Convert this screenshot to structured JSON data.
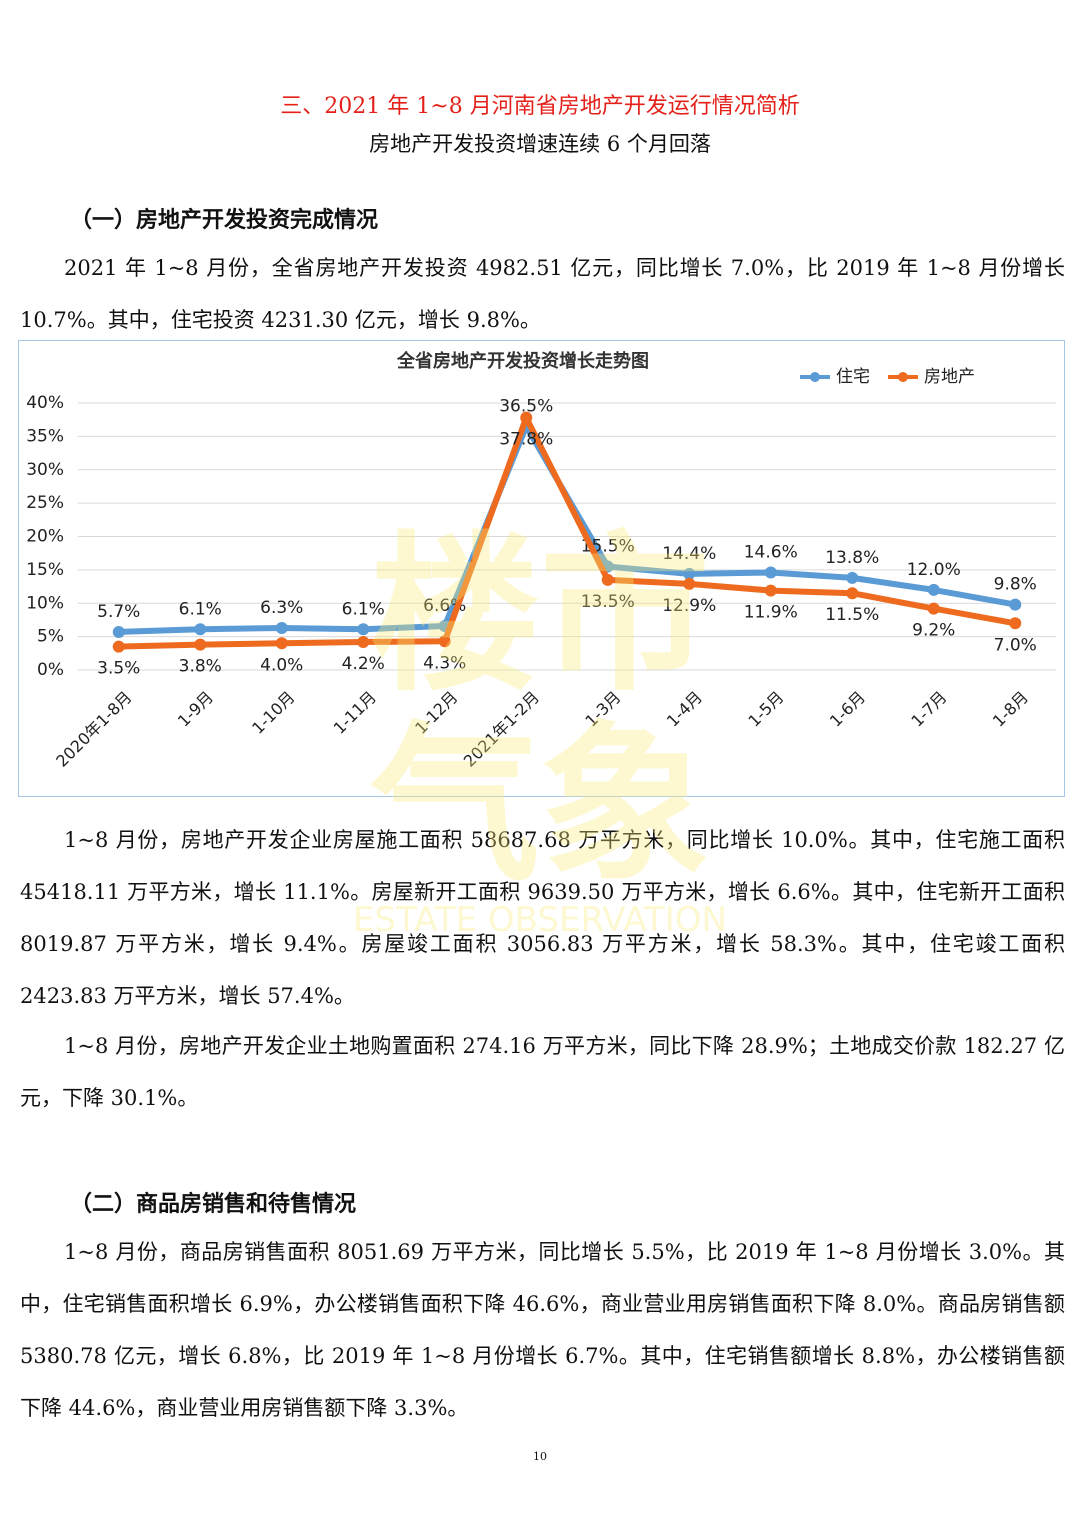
{
  "header": {
    "title": "三、2021 年 1~8 月河南省房地产开发运行情况简析",
    "subtitle": "房地产开发投资增速连续 6 个月回落"
  },
  "sections": [
    {
      "heading": "（一）房地产开发投资完成情况",
      "paragraphs": [
        "2021 年 1~8 月份，全省房地产开发投资 4982.51 亿元，同比增长 7.0%，比 2019 年 1~8 月份增长 10.7%。其中，住宅投资 4231.30 亿元，增长 9.8%。",
        "1~8 月份，房地产开发企业房屋施工面积 58687.68 万平方米，同比增长 10.0%。其中，住宅施工面积 45418.11 万平方米，增长 11.1%。房屋新开工面积 9639.50 万平方米，增长 6.6%。其中，住宅新开工面积 8019.87 万平方米，增长 9.4%。房屋竣工面积 3056.83 万平方米，增长 58.3%。其中，住宅竣工面积 2423.83 万平方米，增长 57.4%。",
        "1~8 月份，房地产开发企业土地购置面积 274.16 万平方米，同比下降 28.9%；土地成交价款 182.27 亿元，下降 30.1%。"
      ]
    },
    {
      "heading": "（二）商品房销售和待售情况",
      "paragraphs": [
        "1~8 月份，商品房销售面积 8051.69 万平方米，同比增长 5.5%，比 2019 年 1~8 月份增长 3.0%。其中，住宅销售面积增长 6.9%，办公楼销售面积下降 46.6%，商业营业用房销售面积下降 8.0%。商品房销售额 5380.78 亿元，增长 6.8%，比 2019 年 1~8 月份增长 6.7%。其中，住宅销售额增长 8.8%，办公楼销售额下降 44.6%，商业营业用房销售额下降 3.3%。"
      ]
    }
  ],
  "watermark": {
    "main": "楼市气象",
    "english": "ESTATE OBSERVATION"
  },
  "page_number": "10",
  "chart_data": {
    "type": "line",
    "title": "全省房地产开发投资增长走势图",
    "categories": [
      "2020年1-8月",
      "1-9月",
      "1-10月",
      "1-11月",
      "1-12月",
      "2021年1-2月",
      "1-3月",
      "1-4月",
      "1-5月",
      "1-6月",
      "1-7月",
      "1-8月"
    ],
    "series": [
      {
        "name": "住宅",
        "color": "#5b9bd5",
        "values": [
          5.7,
          6.1,
          6.3,
          6.1,
          6.6,
          36.5,
          15.5,
          14.4,
          14.6,
          13.8,
          12.0,
          9.8
        ],
        "value_labels": [
          "5.7%",
          "6.1%",
          "6.3%",
          "6.1%",
          "6.6%",
          "36.5%",
          "15.5%",
          "14.4%",
          "14.6%",
          "13.8%",
          "12.0%",
          "9.8%"
        ]
      },
      {
        "name": "房地产",
        "color": "#ed6a1e",
        "values": [
          3.5,
          3.8,
          4.0,
          4.2,
          4.3,
          37.8,
          13.5,
          12.9,
          11.9,
          11.5,
          9.2,
          7.0
        ],
        "value_labels": [
          "3.5%",
          "3.8%",
          "4.0%",
          "4.2%",
          "4.3%",
          "37.8%",
          "13.5%",
          "12.9%",
          "11.9%",
          "11.5%",
          "9.2%",
          "7.0%"
        ]
      }
    ],
    "ylim": [
      0,
      40
    ],
    "yticks": [
      {
        "value": 0,
        "label": "0%"
      },
      {
        "value": 5,
        "label": "5%"
      },
      {
        "value": 10,
        "label": "10%"
      },
      {
        "value": 15,
        "label": "15%"
      },
      {
        "value": 20,
        "label": "20%"
      },
      {
        "value": 25,
        "label": "25%"
      },
      {
        "value": 30,
        "label": "30%"
      },
      {
        "value": 35,
        "label": "35%"
      },
      {
        "value": 40,
        "label": "40%"
      }
    ],
    "grid": true,
    "legend": "top-right"
  }
}
